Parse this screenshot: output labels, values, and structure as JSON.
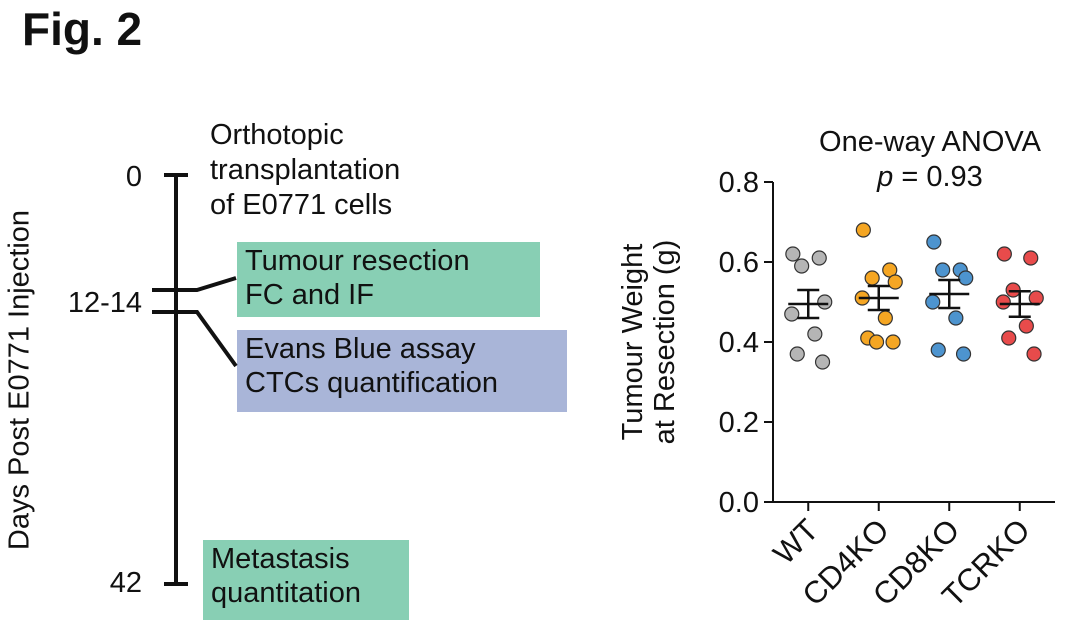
{
  "figure_label": "Fig. 2",
  "timeline": {
    "ylabel": "Days Post E0771 Injection",
    "ticks": [
      {
        "label": "0",
        "day": 0
      },
      {
        "label": "12-14",
        "day": 13
      },
      {
        "label": "42",
        "day": 42
      }
    ],
    "events": [
      {
        "lines": [
          "Orthotopic",
          "transplantation",
          "of E0771 cells"
        ],
        "color": ""
      },
      {
        "lines": [
          "Tumour resection",
          "FC and IF"
        ],
        "color": "#88cfb4"
      },
      {
        "lines": [
          "Evans Blue assay",
          "CTCs quantification"
        ],
        "color": "#a9b5d8"
      },
      {
        "lines": [
          "Metastasis",
          "quantitation"
        ],
        "color": "#88cfb4"
      }
    ]
  },
  "chart_data": {
    "type": "scatter",
    "title": "One-way ANOVA",
    "subtitle_p_symbol": "p",
    "subtitle_value": " = 0.93",
    "ylabel_lines": [
      "Tumour Weight",
      "at Resection (g)"
    ],
    "ylim": [
      0.0,
      0.8
    ],
    "yticks": [
      "0.0",
      "0.2",
      "0.4",
      "0.6",
      "0.8"
    ],
    "ytick_values": [
      0.0,
      0.2,
      0.4,
      0.6,
      0.8
    ],
    "categories": [
      "WT",
      "CD4KO",
      "CD8KO",
      "TCRKO"
    ],
    "series": [
      {
        "color": "#b5b5b5",
        "values": [
          0.62,
          0.61,
          0.59,
          0.5,
          0.47,
          0.42,
          0.37,
          0.35
        ],
        "mean": 0.495,
        "sem": 0.035
      },
      {
        "color": "#f5a623",
        "values": [
          0.68,
          0.58,
          0.56,
          0.55,
          0.51,
          0.46,
          0.41,
          0.4,
          0.4
        ],
        "mean": 0.51,
        "sem": 0.03
      },
      {
        "color": "#4d94cf",
        "values": [
          0.65,
          0.58,
          0.58,
          0.56,
          0.5,
          0.46,
          0.38,
          0.37
        ],
        "mean": 0.52,
        "sem": 0.035
      },
      {
        "color": "#e84b4b",
        "values": [
          0.62,
          0.61,
          0.53,
          0.51,
          0.5,
          0.44,
          0.41,
          0.37
        ],
        "mean": 0.495,
        "sem": 0.032
      }
    ]
  }
}
